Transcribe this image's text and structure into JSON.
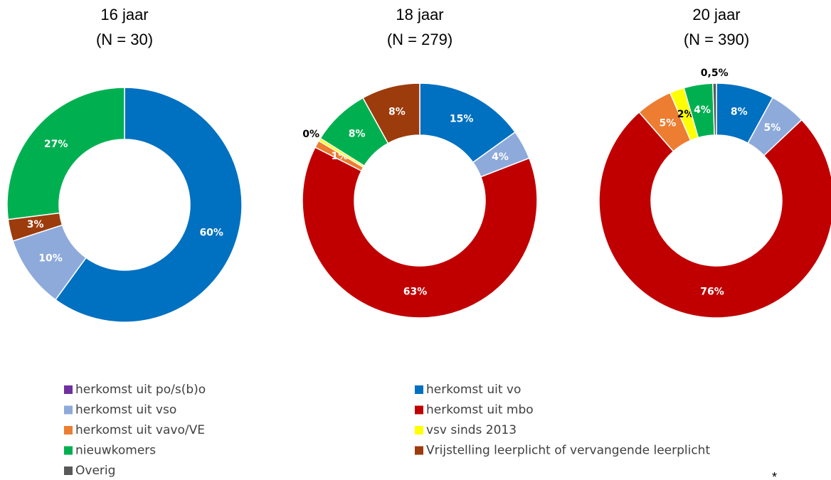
{
  "chart_data": [
    {
      "type": "pie",
      "donut": true,
      "title": "16 jaar",
      "subtitle": "(N = 30)",
      "categories": [
        "herkomst uit vo",
        "herkomst uit vso",
        "Vrijstelling leerplicht of vervangende leerplicht",
        "nieuwkomers"
      ],
      "values": [
        60,
        10,
        3,
        27
      ],
      "value_labels": [
        "60%",
        "10%",
        "3%",
        "27%"
      ]
    },
    {
      "type": "pie",
      "donut": true,
      "title": "18 jaar",
      "subtitle": "(N = 279)",
      "categories": [
        "herkomst uit vo",
        "herkomst uit vso",
        "herkomst uit mbo",
        "herkomst uit vavo/VE",
        "vsv sinds 2013",
        "nieuwkomers",
        "Vrijstelling leerplicht of vervangende leerplicht"
      ],
      "values": [
        15,
        4,
        63,
        1,
        0.4,
        8,
        8
      ],
      "value_labels": [
        "15%",
        "4%",
        "63%",
        "1%",
        "0%",
        "8%",
        "8%"
      ]
    },
    {
      "type": "pie",
      "donut": true,
      "title": "20 jaar",
      "subtitle": "(N = 390)",
      "categories": [
        "herkomst uit vo",
        "herkomst uit vso",
        "herkomst uit mbo",
        "herkomst uit vavo/VE",
        "vsv sinds 2013",
        "nieuwkomers",
        "Overig"
      ],
      "values": [
        8,
        5,
        76,
        5,
        2,
        4,
        0.5
      ],
      "value_labels": [
        "8%",
        "5%",
        "76%",
        "5%",
        "2%",
        "4%",
        "0,5%"
      ]
    }
  ],
  "legend": [
    {
      "name": "herkomst uit po/s(b)o",
      "color": "#7030a0"
    },
    {
      "name": "herkomst uit vo",
      "color": "#0070c0"
    },
    {
      "name": "herkomst uit vso",
      "color": "#8eaadb"
    },
    {
      "name": "herkomst uit mbo",
      "color": "#c00000"
    },
    {
      "name": "herkomst uit vavo/VE",
      "color": "#ed7d31"
    },
    {
      "name": "vsv sinds 2013",
      "color": "#ffff00"
    },
    {
      "name": "nieuwkomers",
      "color": "#00b050"
    },
    {
      "name": "Vrijstelling leerplicht of vervangende leerplicht",
      "color": "#9c3b0b"
    },
    {
      "name": "Overig",
      "color": "#595959"
    }
  ],
  "footnote": "*"
}
